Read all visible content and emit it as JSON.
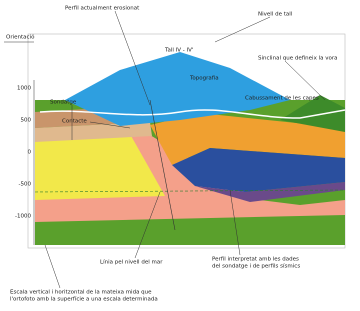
{
  "labels": {
    "orientation": "Orientació",
    "eroded_profile": "Perfil actualment erosionat",
    "cut_level": "Nivell de tall",
    "section": "Tall IV - IV'",
    "topography": "Topografia",
    "dip": "Cabussament de les capes",
    "syncline": "Sinclinal que defineix la vora",
    "borehole": "Sondatge",
    "contact": "Contacte",
    "sea_level": "Línia pel nivell del mar",
    "interpreted_profile": [
      "Perfil interpretat amb les dades",
      "del sondatge i de perfils sísmics"
    ]
  },
  "axis": {
    "ticks": [
      "1000",
      "500",
      "0",
      "-500",
      "-1000"
    ]
  },
  "caption": [
    "Escala vertical i horitzontal de la mateixa mida que",
    "l'ortofoto amb la superfície a una escala determinada"
  ]
}
